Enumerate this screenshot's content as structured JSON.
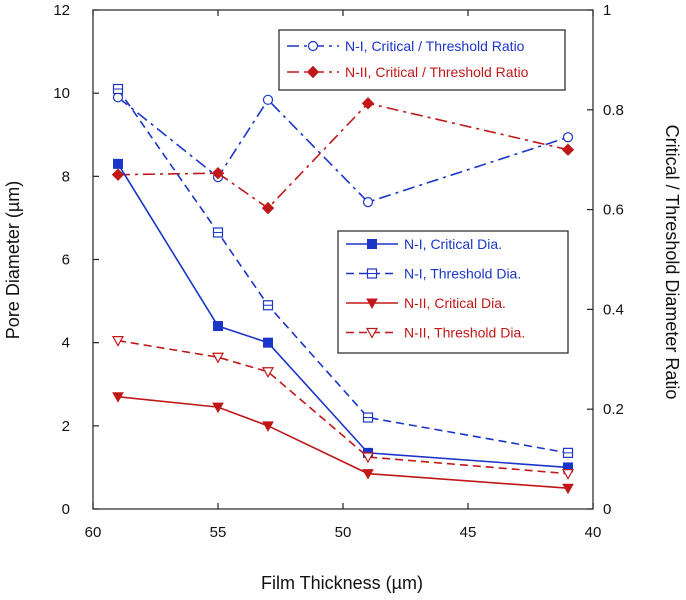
{
  "chart_data": {
    "type": "line",
    "x_reversed": true,
    "xlabel": "Film Thickness (µm)",
    "ylabel": "Pore Diameter (µm)",
    "y2label": "Critical / Threshold Diameter Ratio",
    "xlim": [
      60,
      40
    ],
    "ylim": [
      0,
      12
    ],
    "y2lim": [
      0,
      1
    ],
    "x_ticks": [
      60,
      55,
      50,
      45,
      40
    ],
    "y_ticks": [
      0,
      2,
      4,
      6,
      8,
      10,
      12
    ],
    "y2_ticks": [
      0,
      0.2,
      0.4,
      0.6,
      0.8,
      1
    ],
    "x": [
      59,
      55,
      53,
      49,
      41
    ],
    "series": [
      {
        "name": "N-I, Critical / Threshold Ratio",
        "axis": "right",
        "color": "#1a35c8",
        "dash": "dashdot",
        "marker": "circle-open",
        "values": [
          0.825,
          0.665,
          0.82,
          0.615,
          0.745
        ]
      },
      {
        "name": "N-II, Critical / Threshold Ratio",
        "axis": "right",
        "color": "#c01818",
        "dash": "dashdot",
        "marker": "diamond-filled",
        "values": [
          0.67,
          0.673,
          0.603,
          0.813,
          0.72
        ]
      },
      {
        "name": "N-I, Critical Dia.",
        "axis": "left",
        "color": "#1a35c8",
        "dash": "solid",
        "marker": "square-filled",
        "values": [
          8.3,
          4.4,
          4.0,
          1.35,
          1.0
        ]
      },
      {
        "name": "N-I, Threshold Dia.",
        "axis": "left",
        "color": "#1a35c8",
        "dash": "dashed",
        "marker": "square-open-cross",
        "values": [
          10.1,
          6.65,
          4.9,
          2.2,
          1.35
        ]
      },
      {
        "name": "N-II, Critical Dia.",
        "axis": "left",
        "color": "#c01818",
        "dash": "solid",
        "marker": "triangle-down-filled",
        "values": [
          2.7,
          2.45,
          2.0,
          0.85,
          0.5
        ]
      },
      {
        "name": "N-II, Threshold Dia.",
        "axis": "left",
        "color": "#c01818",
        "dash": "dashed",
        "marker": "triangle-down-open",
        "values": [
          4.05,
          3.65,
          3.3,
          1.25,
          0.85
        ]
      }
    ],
    "legends": [
      {
        "placement": "top-right",
        "series_index": [
          0,
          1
        ]
      },
      {
        "placement": "center-right",
        "series_index": [
          2,
          3,
          4,
          5
        ]
      }
    ]
  }
}
